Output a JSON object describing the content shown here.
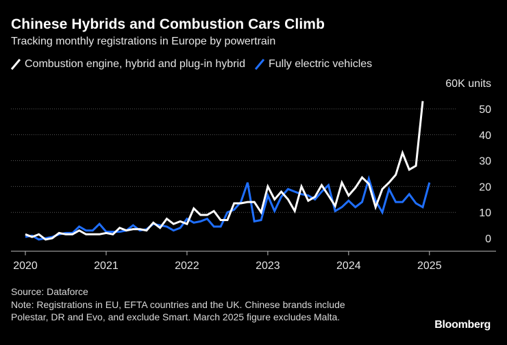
{
  "header": {
    "title": "Chinese Hybrids and Combustion Cars Climb",
    "subtitle": "Tracking monthly registrations in Europe by powertrain"
  },
  "colors": {
    "background": "#000000",
    "combustion": "#ffffff",
    "electric": "#1f6fff",
    "grid": "#5a5a5a"
  },
  "footer": {
    "source": "Source: Dataforce",
    "note": "Note: Registrations in EU, EFTA countries and the UK. Chinese brands include Polestar, DR and Evo, and exclude Smart. March 2025 figure excludes Malta.",
    "brand": "Bloomberg"
  },
  "chart_data": {
    "type": "line",
    "title": "Chinese Hybrids and Combustion Cars Climb",
    "ylabel": "60K units",
    "ylim": [
      0,
      60
    ],
    "yticks": [
      0,
      10,
      20,
      30,
      40,
      50
    ],
    "ytick_labels": [
      "0",
      "10",
      "20",
      "30",
      "40",
      "50"
    ],
    "x_tick_labels": [
      "2020",
      "2021",
      "2022",
      "2023",
      "2024",
      "2025"
    ],
    "x_tick_positions": [
      0,
      12,
      24,
      36,
      48,
      60
    ],
    "x_range": [
      0,
      67
    ],
    "grid": true,
    "legend_position": "top-left",
    "series": [
      {
        "name": "Combustion engine, hybrid and plug-in hybrid",
        "color": "#ffffff",
        "values": [
          1.5,
          0.5,
          1.5,
          -0.5,
          0,
          2,
          1.5,
          1.5,
          3,
          1.5,
          1.5,
          1.5,
          2,
          1.5,
          4,
          3,
          3.5,
          3.5,
          3,
          6,
          4,
          7.5,
          5.5,
          6.5,
          5.5,
          11.5,
          9,
          9,
          10.5,
          7,
          7,
          13.5,
          13.5,
          14,
          14,
          10,
          20,
          15,
          18,
          15,
          10.5,
          20,
          14.5,
          16,
          20.5,
          16.5,
          12.5,
          21.5,
          16.5,
          19.5,
          23.5,
          21,
          12,
          19,
          21.5,
          24.5,
          33,
          26.5,
          28,
          53
        ]
      },
      {
        "name": "Fully electric vehicles",
        "color": "#1f6fff",
        "values": [
          0.5,
          1,
          -0.5,
          0,
          0.5,
          1.5,
          2,
          2,
          4.5,
          3,
          3,
          5.5,
          2.5,
          2.5,
          2.5,
          3,
          5,
          3,
          3.5,
          5.5,
          5,
          4.5,
          3,
          4,
          7.5,
          6,
          6.5,
          7.5,
          4.5,
          4.5,
          10,
          11,
          14,
          21.5,
          6.5,
          7,
          16.5,
          10.5,
          16,
          19,
          18,
          17,
          16.5,
          15,
          18,
          20.5,
          10.5,
          12,
          14.5,
          12,
          14,
          23,
          14.5,
          10,
          19,
          14,
          14,
          17,
          13.5,
          12,
          21.5
        ]
      }
    ]
  }
}
